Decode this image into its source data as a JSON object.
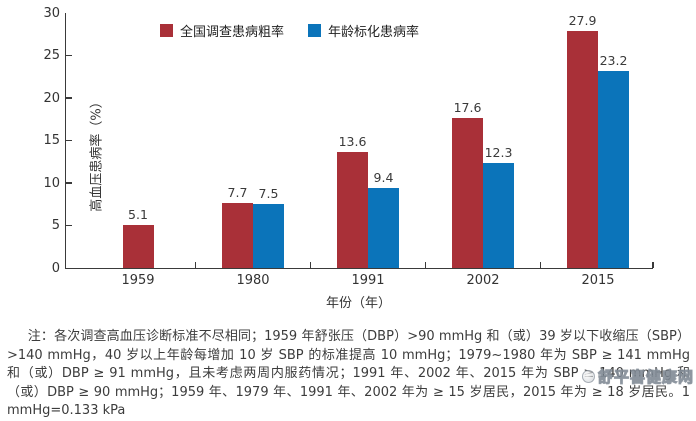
{
  "chart_data": {
    "type": "bar",
    "title": "",
    "categories": [
      "1959",
      "1980",
      "1991",
      "2002",
      "2015"
    ],
    "series": [
      {
        "name": "全国调查患病粗率",
        "color": "#a93038",
        "values": [
          5.1,
          7.7,
          13.6,
          17.6,
          27.9
        ]
      },
      {
        "name": "年龄标化患病率",
        "color": "#0b74ba",
        "values": [
          null,
          7.5,
          9.4,
          12.3,
          23.2
        ]
      }
    ],
    "xlabel": "年份（年）",
    "ylabel": "高血压患病率（%）",
    "ylim": [
      0,
      30
    ],
    "yticks": [
      0,
      5,
      10,
      15,
      20,
      25,
      30
    ],
    "grid": false,
    "legend_position": "top",
    "value_labels": true,
    "axis_color": "#3a3a3a",
    "label_color": "#333333"
  },
  "note": {
    "text": "注：各次调查高血压诊断标准不尽相同；1959 年舒张压（DBP）>90 mmHg 和（或）39 岁以下收缩压（SBP）>140 mmHg，40 岁以上年龄每增加 10 岁 SBP 的标准提高 10 mmHg；1979~1980 年为 SBP ≥ 141 mmHg 和（或）DBP ≥ 91 mmHg，且未考虑两周内服药情况；1991 年、2002 年、2015 年为 SBP ≥ 140 mmHg 和（或）DBP ≥ 90 mmHg；1959 年、1979 年、1991 年、2002 年为 ≥ 15 岁居民，2015 年为 ≥ 18 岁居民。1 mmHg=0.133 kPa"
  },
  "watermark": {
    "text": "舒平喜健康网"
  }
}
